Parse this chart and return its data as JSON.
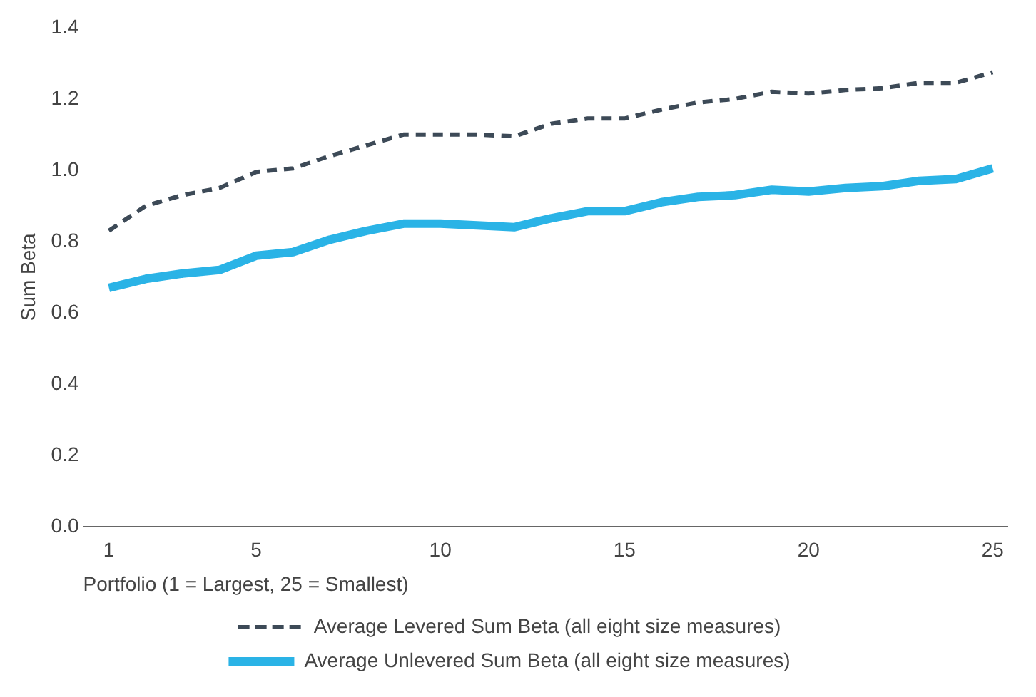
{
  "chart_data": {
    "type": "line",
    "xlabel": "Portfolio (1 = Largest, 25 = Smallest)",
    "ylabel": "Sum Beta",
    "x": [
      1,
      2,
      3,
      4,
      5,
      6,
      7,
      8,
      9,
      10,
      11,
      12,
      13,
      14,
      15,
      16,
      17,
      18,
      19,
      20,
      21,
      22,
      23,
      24,
      25
    ],
    "series": [
      {
        "name": "Average Levered Sum Beta (all eight size measures)",
        "color": "#3d4a57",
        "line_style": "dashed",
        "values": [
          0.83,
          0.9,
          0.93,
          0.95,
          0.995,
          1.005,
          1.04,
          1.07,
          1.1,
          1.1,
          1.1,
          1.095,
          1.13,
          1.145,
          1.145,
          1.17,
          1.19,
          1.2,
          1.22,
          1.215,
          1.225,
          1.23,
          1.245,
          1.245,
          1.275
        ]
      },
      {
        "name": "Average Unlevered Sum Beta (all eight size measures)",
        "color": "#2ab3e6",
        "line_style": "solid",
        "values": [
          0.67,
          0.695,
          0.71,
          0.72,
          0.76,
          0.77,
          0.805,
          0.83,
          0.85,
          0.85,
          0.845,
          0.84,
          0.865,
          0.885,
          0.885,
          0.91,
          0.925,
          0.93,
          0.945,
          0.94,
          0.95,
          0.955,
          0.97,
          0.975,
          1.005
        ]
      }
    ],
    "xlim": [
      0.3,
      25.4
    ],
    "xticks": [
      1,
      5,
      10,
      15,
      20,
      25
    ],
    "ylim": [
      0,
      1.4
    ],
    "yticks": [
      {
        "value": 0,
        "label": "0.0"
      },
      {
        "value": 0.2,
        "label": "0.2"
      },
      {
        "value": 0.4,
        "label": "0.4"
      },
      {
        "value": 0.6,
        "label": "0.6"
      },
      {
        "value": 0.8,
        "label": "0.8"
      },
      {
        "value": 1,
        "label": "1.0"
      },
      {
        "value": 1.2,
        "label": "1.2"
      },
      {
        "value": 1.4,
        "label": "1.4"
      }
    ],
    "grid": false,
    "legend": "bottom",
    "marker": "none"
  }
}
